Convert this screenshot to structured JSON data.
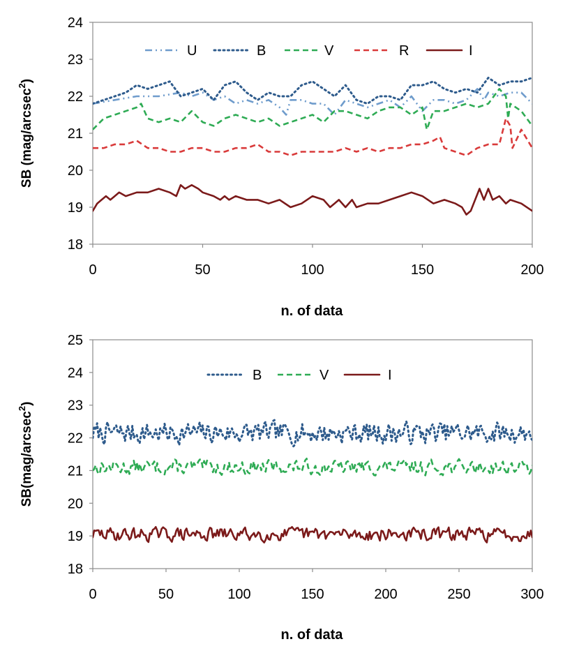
{
  "chart_data": [
    {
      "type": "line",
      "title": "",
      "xlabel": "n. of data",
      "ylabel_main": "SB (mag/arcsec",
      "ylabel_sup": "2",
      "ylabel_close": ")",
      "xlim": [
        0,
        200
      ],
      "ylim": [
        18,
        24
      ],
      "xticks": [
        "0",
        "50",
        "100",
        "150",
        "200"
      ],
      "yticks": [
        "18",
        "19",
        "20",
        "21",
        "22",
        "23",
        "24"
      ],
      "legend_position": "top-center",
      "series": [
        {
          "name": "U",
          "style": "dashdotdot",
          "color": "#6f9ccc",
          "x": [
            0,
            10,
            20,
            30,
            40,
            45,
            50,
            55,
            60,
            65,
            70,
            75,
            80,
            85,
            88,
            90,
            95,
            100,
            105,
            110,
            115,
            120,
            125,
            130,
            135,
            140,
            145,
            150,
            155,
            160,
            165,
            170,
            175,
            178,
            180,
            185,
            190,
            195,
            200
          ],
          "values": [
            21.8,
            21.9,
            22.0,
            22.0,
            22.1,
            22.0,
            22.1,
            21.9,
            22.0,
            21.8,
            21.9,
            21.8,
            21.9,
            21.7,
            21.5,
            21.9,
            21.9,
            21.8,
            21.8,
            21.5,
            21.9,
            21.8,
            21.7,
            21.8,
            21.9,
            21.7,
            22.0,
            21.6,
            21.9,
            21.9,
            21.8,
            21.9,
            22.2,
            21.9,
            22.1,
            22.0,
            22.1,
            22.1,
            21.8
          ]
        },
        {
          "name": "B",
          "style": "dotted",
          "color": "#2e5b8c",
          "x": [
            0,
            5,
            10,
            15,
            20,
            25,
            30,
            35,
            40,
            45,
            50,
            55,
            60,
            65,
            70,
            75,
            80,
            85,
            90,
            95,
            100,
            105,
            110,
            115,
            120,
            125,
            130,
            135,
            140,
            145,
            150,
            155,
            160,
            165,
            170,
            175,
            180,
            185,
            190,
            195,
            200
          ],
          "values": [
            21.8,
            21.9,
            22.0,
            22.1,
            22.3,
            22.2,
            22.3,
            22.4,
            22.0,
            22.1,
            22.2,
            21.9,
            22.3,
            22.4,
            22.1,
            21.9,
            22.1,
            22.0,
            22.0,
            22.3,
            22.4,
            22.2,
            22.0,
            22.3,
            21.9,
            21.8,
            22.0,
            22.0,
            21.9,
            22.3,
            22.3,
            22.4,
            22.2,
            22.1,
            22.2,
            22.1,
            22.5,
            22.3,
            22.4,
            22.4,
            22.5
          ]
        },
        {
          "name": "V",
          "style": "dashed",
          "color": "#2eab54",
          "x": [
            0,
            5,
            10,
            15,
            20,
            22,
            25,
            30,
            35,
            40,
            45,
            50,
            55,
            60,
            65,
            70,
            75,
            80,
            85,
            90,
            95,
            100,
            105,
            110,
            115,
            120,
            125,
            130,
            135,
            140,
            145,
            150,
            152,
            155,
            160,
            165,
            170,
            175,
            180,
            185,
            188,
            189,
            190,
            195,
            200
          ],
          "values": [
            21.1,
            21.4,
            21.5,
            21.6,
            21.7,
            21.8,
            21.4,
            21.3,
            21.4,
            21.3,
            21.6,
            21.3,
            21.2,
            21.4,
            21.5,
            21.4,
            21.3,
            21.4,
            21.2,
            21.3,
            21.4,
            21.5,
            21.3,
            21.6,
            21.6,
            21.5,
            21.4,
            21.6,
            21.7,
            21.7,
            21.5,
            21.7,
            21.1,
            21.6,
            21.6,
            21.7,
            21.8,
            21.7,
            21.8,
            22.2,
            22.0,
            21.4,
            21.8,
            21.6,
            21.2
          ]
        },
        {
          "name": "R",
          "style": "dashed",
          "color": "#d93a3a",
          "x": [
            0,
            5,
            10,
            15,
            20,
            25,
            30,
            35,
            40,
            45,
            50,
            55,
            60,
            65,
            70,
            75,
            80,
            85,
            90,
            95,
            100,
            105,
            110,
            115,
            120,
            125,
            130,
            135,
            140,
            145,
            150,
            155,
            158,
            160,
            165,
            170,
            175,
            180,
            185,
            188,
            190,
            191,
            195,
            200
          ],
          "values": [
            20.6,
            20.6,
            20.7,
            20.7,
            20.8,
            20.6,
            20.6,
            20.5,
            20.5,
            20.6,
            20.6,
            20.5,
            20.5,
            20.6,
            20.6,
            20.7,
            20.5,
            20.5,
            20.4,
            20.5,
            20.5,
            20.5,
            20.5,
            20.6,
            20.5,
            20.6,
            20.5,
            20.6,
            20.6,
            20.7,
            20.7,
            20.8,
            20.9,
            20.6,
            20.5,
            20.4,
            20.6,
            20.7,
            20.7,
            21.4,
            21.2,
            20.6,
            21.1,
            20.6
          ]
        },
        {
          "name": "I",
          "style": "solid",
          "color": "#7b1a1a",
          "x": [
            0,
            2,
            4,
            6,
            8,
            10,
            12,
            15,
            20,
            25,
            30,
            35,
            38,
            40,
            42,
            45,
            48,
            50,
            55,
            58,
            60,
            62,
            65,
            70,
            75,
            80,
            85,
            90,
            95,
            100,
            105,
            108,
            110,
            112,
            115,
            118,
            120,
            125,
            130,
            135,
            140,
            145,
            150,
            155,
            160,
            165,
            168,
            170,
            172,
            174,
            176,
            178,
            180,
            182,
            185,
            188,
            190,
            195,
            200
          ],
          "values": [
            18.9,
            19.1,
            19.2,
            19.3,
            19.2,
            19.3,
            19.4,
            19.3,
            19.4,
            19.4,
            19.5,
            19.4,
            19.3,
            19.6,
            19.5,
            19.6,
            19.5,
            19.4,
            19.3,
            19.2,
            19.3,
            19.2,
            19.3,
            19.2,
            19.2,
            19.1,
            19.2,
            19.0,
            19.1,
            19.3,
            19.2,
            19.0,
            19.1,
            19.2,
            19.0,
            19.2,
            19.0,
            19.1,
            19.1,
            19.2,
            19.3,
            19.4,
            19.3,
            19.1,
            19.2,
            19.1,
            19.0,
            18.8,
            18.9,
            19.2,
            19.5,
            19.2,
            19.5,
            19.2,
            19.3,
            19.1,
            19.2,
            19.1,
            18.9
          ]
        }
      ]
    },
    {
      "type": "line",
      "title": "",
      "xlabel": "n. of data",
      "ylabel_main": "SB(mag/arcsec",
      "ylabel_sup": "2",
      "ylabel_close": ")",
      "xlim": [
        0,
        300
      ],
      "ylim": [
        18,
        25
      ],
      "xticks": [
        "0",
        "50",
        "100",
        "150",
        "200",
        "250",
        "300"
      ],
      "yticks": [
        "18",
        "19",
        "20",
        "21",
        "22",
        "23",
        "24",
        "25"
      ],
      "legend_position": "top-center",
      "series": [
        {
          "name": "B",
          "style": "dotted",
          "color": "#2e5b8c",
          "base": 22.15,
          "amp": 0.45,
          "seed": 7
        },
        {
          "name": "V",
          "style": "dashed",
          "color": "#2eab54",
          "base": 21.1,
          "amp": 0.3,
          "seed": 13
        },
        {
          "name": "I",
          "style": "solid",
          "color": "#7b1a1a",
          "base": 19.05,
          "amp": 0.28,
          "seed": 29
        }
      ]
    }
  ]
}
